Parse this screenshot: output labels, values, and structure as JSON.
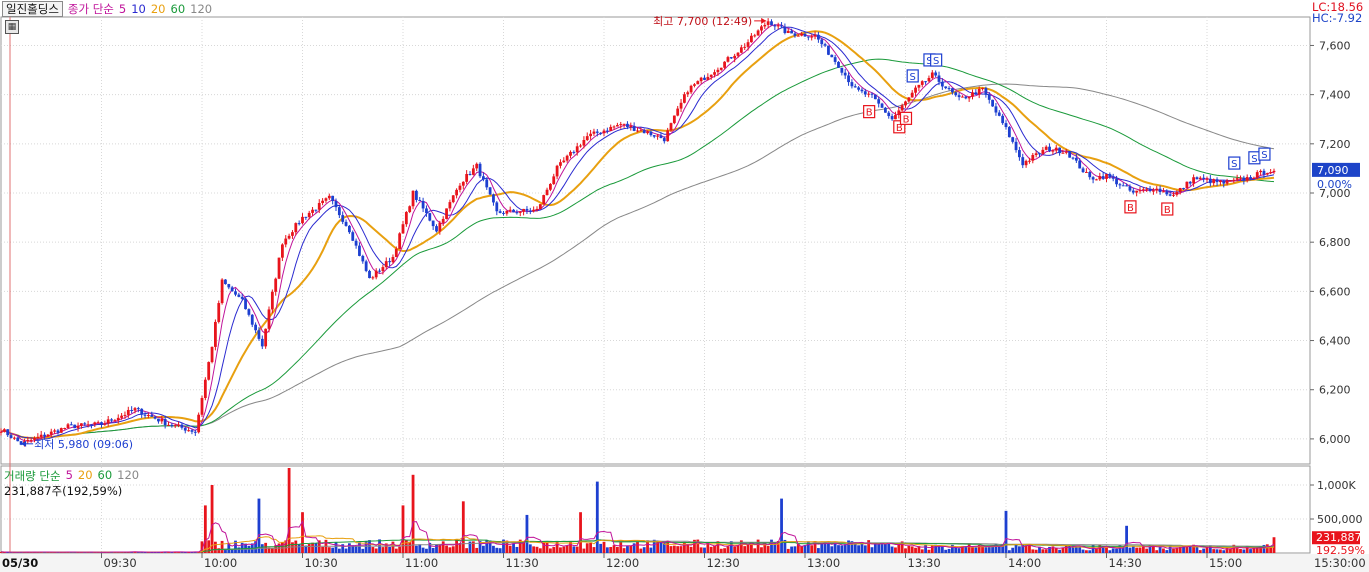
{
  "header": {
    "stock_name": "일진홀딩스",
    "indicator_label": "종가 단순",
    "ma_periods": [
      "5",
      "10",
      "20",
      "60",
      "120"
    ]
  },
  "volume_header": {
    "label": "거래량 단순",
    "ma_periods": [
      "5",
      "20",
      "60",
      "120"
    ],
    "info": "231,887주(192,59%)"
  },
  "price_axis": {
    "lc": "LC:18.56",
    "hc": "HC:-7.92",
    "ticks": [
      "7,600",
      "7,400",
      "7,200",
      "7,000",
      "6,800",
      "6,600",
      "6,400",
      "6,200",
      "6,000"
    ],
    "current_price": "7,090",
    "current_change": "0.00%"
  },
  "volume_axis": {
    "ticks": [
      "1,000K",
      "500,000"
    ],
    "current_volume": "231,887",
    "current_pct": "192,59%"
  },
  "time_axis": {
    "date": "05/30",
    "ticks": [
      "09:30",
      "10:00",
      "10:30",
      "11:00",
      "11:30",
      "12:00",
      "12:30",
      "13:00",
      "13:30",
      "14:00",
      "14:30",
      "15:00"
    ],
    "end": "15:30:00"
  },
  "annotations": {
    "high": "최고 7,700 (12:49)",
    "low": "최저 5,980 (09:06)"
  },
  "colors": {
    "up": "#e8141c",
    "down": "#1d3fd0",
    "ma5": "#c0149a",
    "ma10": "#2a2ad0",
    "ma20": "#e8a010",
    "ma60": "#1a9a3a",
    "ma120": "#888888"
  },
  "chart_data": {
    "type": "candlestick",
    "title": "일진홀딩스",
    "x_range": [
      "09:00",
      "15:30"
    ],
    "y_range": [
      5950,
      7750
    ],
    "y_ticks": [
      6000,
      6200,
      6400,
      6600,
      6800,
      7000,
      7200,
      7400,
      7600
    ],
    "volume_ticks": [
      500000,
      1000000
    ],
    "price_path": [
      [
        "09:00",
        6040
      ],
      [
        "09:06",
        5980
      ],
      [
        "09:20",
        6050
      ],
      [
        "09:30",
        6060
      ],
      [
        "09:40",
        6120
      ],
      [
        "09:50",
        6060
      ],
      [
        "09:58",
        6030
      ],
      [
        "10:03",
        6380
      ],
      [
        "10:06",
        6640
      ],
      [
        "10:12",
        6560
      ],
      [
        "10:18",
        6380
      ],
      [
        "10:24",
        6800
      ],
      [
        "10:30",
        6900
      ],
      [
        "10:38",
        6980
      ],
      [
        "10:44",
        6850
      ],
      [
        "10:50",
        6650
      ],
      [
        "10:57",
        6740
      ],
      [
        "11:03",
        7000
      ],
      [
        "11:10",
        6850
      ],
      [
        "11:17",
        7040
      ],
      [
        "11:22",
        7110
      ],
      [
        "11:28",
        6920
      ],
      [
        "11:40",
        6930
      ],
      [
        "11:46",
        7100
      ],
      [
        "11:55",
        7230
      ],
      [
        "12:05",
        7280
      ],
      [
        "12:12",
        7250
      ],
      [
        "12:18",
        7220
      ],
      [
        "12:25",
        7420
      ],
      [
        "12:35",
        7520
      ],
      [
        "12:42",
        7600
      ],
      [
        "12:49",
        7700
      ],
      [
        "12:55",
        7650
      ],
      [
        "13:03",
        7640
      ],
      [
        "13:10",
        7520
      ],
      [
        "13:15",
        7420
      ],
      [
        "13:20",
        7390
      ],
      [
        "13:26",
        7300
      ],
      [
        "13:33",
        7420
      ],
      [
        "13:38",
        7480
      ],
      [
        "13:46",
        7380
      ],
      [
        "13:53",
        7420
      ],
      [
        "14:00",
        7260
      ],
      [
        "14:05",
        7120
      ],
      [
        "14:12",
        7180
      ],
      [
        "14:18",
        7170
      ],
      [
        "14:25",
        7060
      ],
      [
        "14:30",
        7070
      ],
      [
        "14:38",
        7000
      ],
      [
        "14:44",
        7020
      ],
      [
        "14:50",
        6990
      ],
      [
        "14:56",
        7060
      ],
      [
        "15:05",
        7040
      ],
      [
        "15:12",
        7060
      ],
      [
        "15:18",
        7090
      ]
    ],
    "signals": [
      {
        "type": "B",
        "time": "13:19"
      },
      {
        "type": "B",
        "time": "13:28"
      },
      {
        "type": "B",
        "time": "13:30"
      },
      {
        "type": "S",
        "time": "13:32"
      },
      {
        "type": "S",
        "time": "13:37"
      },
      {
        "type": "S",
        "time": "13:39"
      },
      {
        "type": "B",
        "time": "14:37"
      },
      {
        "type": "B",
        "time": "14:48"
      },
      {
        "type": "S",
        "time": "15:08"
      },
      {
        "type": "S",
        "time": "15:14"
      },
      {
        "type": "S",
        "time": "15:17"
      }
    ],
    "volume_spikes": [
      [
        "10:01",
        700000
      ],
      [
        "10:03",
        1000000
      ],
      [
        "10:17",
        800000
      ],
      [
        "10:26",
        1250000
      ],
      [
        "10:30",
        600000
      ],
      [
        "11:00",
        700000
      ],
      [
        "11:03",
        1150000
      ],
      [
        "11:18",
        760000
      ],
      [
        "11:37",
        560000
      ],
      [
        "11:53",
        600000
      ],
      [
        "11:58",
        1050000
      ],
      [
        "12:53",
        800000
      ],
      [
        "14:00",
        620000
      ],
      [
        "14:36",
        400000
      ]
    ],
    "current": {
      "price": 7090,
      "volume": 231887
    }
  }
}
